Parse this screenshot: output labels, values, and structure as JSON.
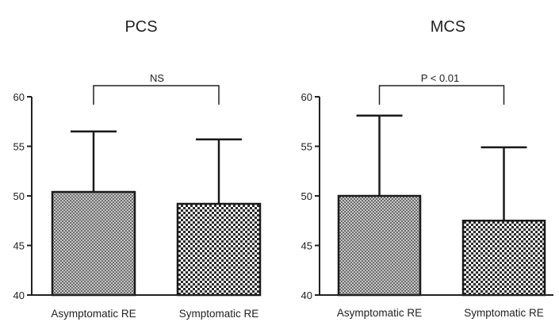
{
  "chart_data": [
    {
      "type": "bar",
      "title": "PCS",
      "categories": [
        "Asymptomatic RE",
        "Symptomatic RE"
      ],
      "values": [
        50.4,
        49.2
      ],
      "error_upper": [
        56.5,
        55.7
      ],
      "ylim": [
        40,
        60
      ],
      "yticks": [
        "40",
        "45",
        "50",
        "55",
        "60"
      ],
      "significance": "NS",
      "xlabel": "",
      "ylabel": "",
      "grid": false
    },
    {
      "type": "bar",
      "title": "MCS",
      "categories": [
        "Asymptomatic RE",
        "Symptomatic RE"
      ],
      "values": [
        50.0,
        47.5
      ],
      "error_upper": [
        58.1,
        54.9
      ],
      "ylim": [
        40,
        60
      ],
      "yticks": [
        "40",
        "45",
        "50",
        "55",
        "60"
      ],
      "significance": "P < 0.01",
      "xlabel": "",
      "ylabel": "",
      "grid": false
    }
  ],
  "style": {
    "bar_fill_pattern": [
      "fine-dot",
      "checker"
    ],
    "bar_stroke": "#1a1a1a",
    "axis_color": "#222222"
  }
}
